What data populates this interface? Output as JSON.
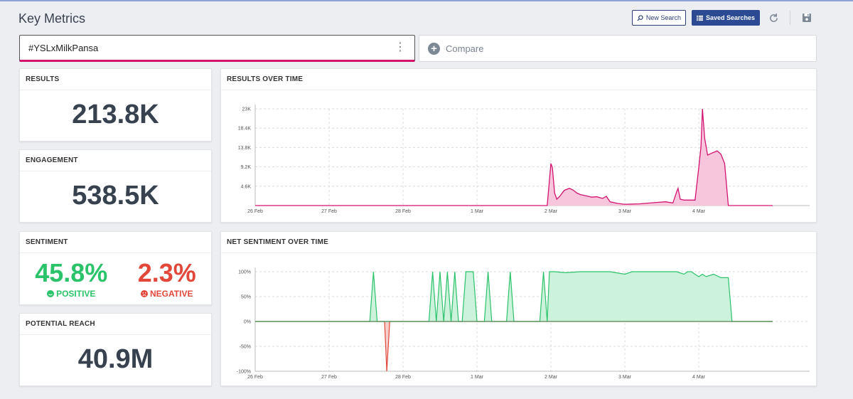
{
  "header": {
    "title": "Key Metrics",
    "new_search_label": "New Search",
    "saved_searches_label": "Saved Searches",
    "refresh_icon": "refresh-icon",
    "save_icon": "save-icon"
  },
  "query": {
    "value": "#YSLxMilkPansa",
    "compare_label": "Compare"
  },
  "colors": {
    "results_line": "#d4136f",
    "results_fill": "#f7c6dd",
    "sentiment_positive": "#2bc36a",
    "sentiment_fill": "#cdf2db",
    "sentiment_negative": "#e2473a"
  },
  "results": {
    "label": "RESULTS",
    "value": "213.8K"
  },
  "engagement": {
    "label": "ENGAGEMENT",
    "value": "538.5K"
  },
  "sentiment": {
    "label": "SENTIMENT",
    "positive_value": "45.8%",
    "positive_label": "POSITIVE",
    "negative_value": "2.3%",
    "negative_label": "NEGATIVE"
  },
  "reach": {
    "label": "POTENTIAL REACH",
    "value": "40.9M"
  },
  "chart_data": [
    {
      "type": "area",
      "title": "RESULTS OVER TIME",
      "categories": [
        "26 Feb",
        "27 Feb",
        "28 Feb",
        "1 Mar",
        "2 Mar",
        "3 Mar",
        "4 Mar"
      ],
      "y_ticks": [
        "4.6K",
        "9.2K",
        "13.8K",
        "18.4K",
        "23K"
      ],
      "ylim": [
        0,
        23000
      ],
      "grid": true,
      "series": [
        {
          "x": [
            0,
            1,
            2,
            3,
            3.95,
            4.0,
            4.02,
            4.05,
            4.08,
            4.12,
            4.18,
            4.25,
            4.3,
            4.35,
            4.4,
            4.48,
            4.55,
            4.62,
            4.7,
            4.75,
            4.8,
            4.9,
            5.0,
            5.2,
            5.4,
            5.55,
            5.65,
            5.7,
            5.72,
            5.75,
            5.8,
            5.95,
            6.0,
            6.03,
            6.05,
            6.08,
            6.12,
            6.18,
            6.25,
            6.3,
            6.35,
            6.4,
            7.0
          ],
          "values": [
            0,
            0,
            0,
            0,
            0,
            10000,
            9000,
            3000,
            1500,
            2200,
            3600,
            4100,
            3700,
            3000,
            2600,
            2300,
            2000,
            2100,
            1700,
            2200,
            900,
            500,
            300,
            400,
            700,
            900,
            600,
            3200,
            4100,
            1500,
            1300,
            1300,
            9000,
            14000,
            23000,
            16000,
            12000,
            12500,
            13000,
            12200,
            10000,
            0,
            0
          ]
        }
      ]
    },
    {
      "type": "area",
      "title": "NET SENTIMENT OVER TIME",
      "categories": [
        "26 Feb",
        "27 Feb",
        "28 Feb",
        "1 Mar",
        "2 Mar",
        "3 Mar",
        "4 Mar"
      ],
      "y_ticks": [
        "-100%",
        "-50%",
        "0%",
        "50%",
        "100%"
      ],
      "ylim": [
        -100,
        100
      ],
      "grid": true,
      "series": [
        {
          "x": [
            0,
            1.55,
            1.6,
            1.65,
            1.75,
            1.78,
            1.82,
            1.9,
            2.35,
            2.4,
            2.45,
            2.5,
            2.55,
            2.6,
            2.65,
            2.7,
            2.75,
            2.8,
            2.85,
            2.95,
            3.0,
            3.1,
            3.15,
            3.2,
            3.4,
            3.45,
            3.5,
            3.55,
            3.85,
            3.9,
            3.95,
            3.98,
            4.05,
            4.2,
            4.4,
            4.8,
            5.0,
            5.1,
            5.3,
            5.5,
            5.7,
            5.8,
            5.85,
            5.9,
            6.0,
            6.05,
            6.1,
            6.2,
            6.3,
            6.4,
            6.45,
            7.0
          ],
          "values": [
            0,
            0,
            100,
            0,
            0,
            -100,
            0,
            0,
            0,
            100,
            0,
            100,
            0,
            100,
            0,
            100,
            0,
            0,
            100,
            100,
            0,
            0,
            100,
            0,
            0,
            100,
            0,
            0,
            0,
            100,
            0,
            100,
            100,
            98,
            100,
            100,
            95,
            100,
            100,
            100,
            100,
            95,
            100,
            100,
            90,
            95,
            90,
            95,
            88,
            88,
            0,
            0
          ]
        }
      ]
    }
  ]
}
